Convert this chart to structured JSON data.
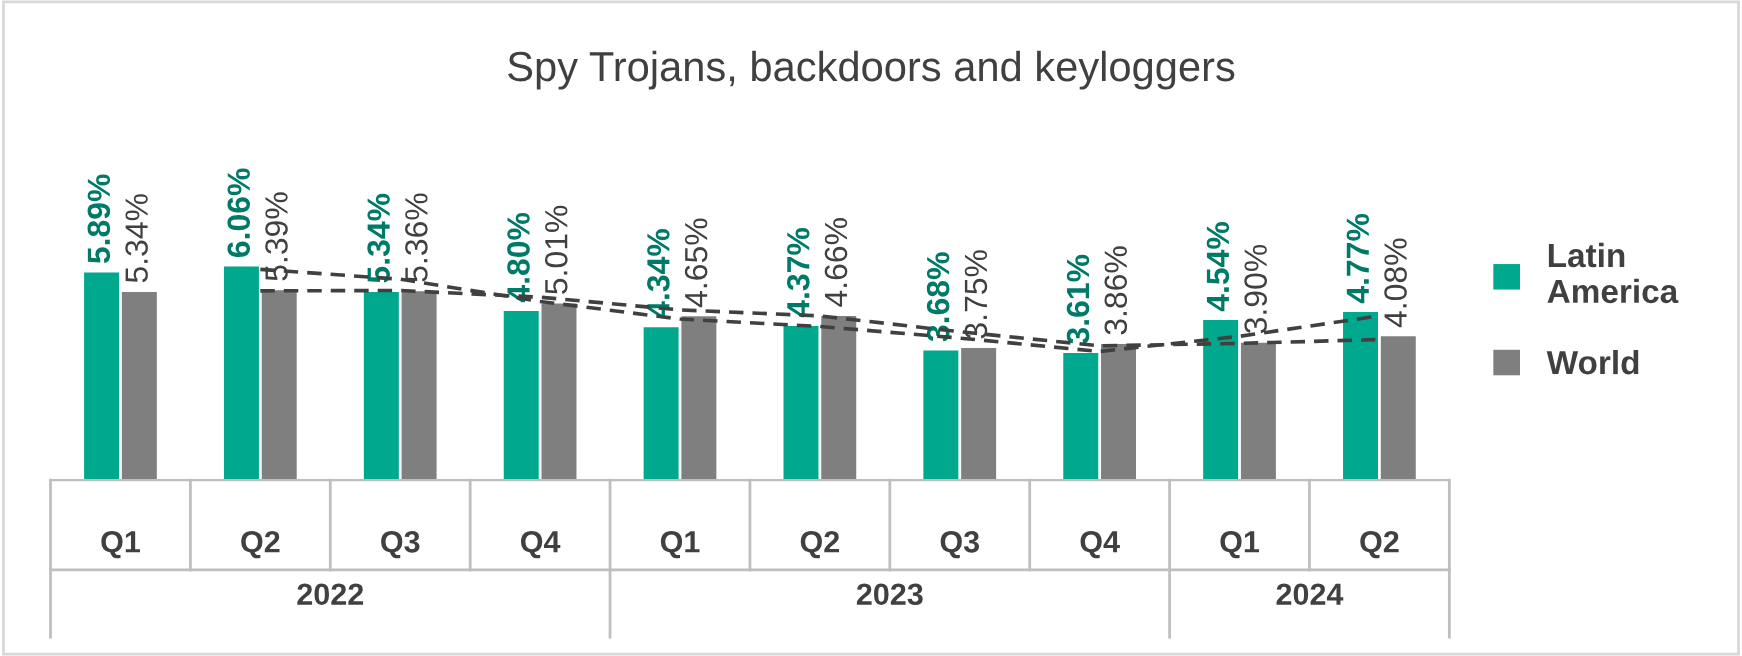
{
  "chart_data": {
    "type": "bar",
    "title": "Spy Trojans, backdoors and keyloggers",
    "categories": [
      "Q1",
      "Q2",
      "Q3",
      "Q4",
      "Q1",
      "Q2",
      "Q3",
      "Q4",
      "Q1",
      "Q2"
    ],
    "series": [
      {
        "name": "Latin America",
        "color": "#00a88e",
        "values": [
          5.89,
          6.06,
          5.34,
          4.8,
          4.34,
          4.37,
          3.68,
          3.61,
          4.54,
          4.77
        ],
        "value_labels": [
          "5.89%",
          "6.06%",
          "5.34%",
          "4.80%",
          "4.34%",
          "4.37%",
          "3.68%",
          "3.61%",
          "4.54%",
          "4.77%"
        ]
      },
      {
        "name": "World",
        "color": "#7f7f7f",
        "values": [
          5.34,
          5.39,
          5.36,
          5.01,
          4.65,
          4.66,
          3.75,
          3.86,
          3.9,
          4.08
        ],
        "value_labels": [
          "5.34%",
          "5.39%",
          "5.36%",
          "5.01%",
          "4.65%",
          "4.66%",
          "3.75%",
          "3.86%",
          "3.90%",
          "4.08%"
        ]
      },
      {
        "type": "line",
        "color": "#404040",
        "line_style": "dashed",
        "values": [
          null,
          5.98,
          5.7,
          5.07,
          4.57,
          4.36,
          4.03,
          3.65,
          4.08,
          4.66
        ]
      },
      {
        "type": "line",
        "color": "#404040",
        "line_style": "dashed",
        "values": [
          null,
          5.37,
          5.38,
          5.19,
          4.83,
          4.66,
          4.21,
          3.81,
          3.88,
          3.99
        ]
      }
    ],
    "annotations": [
      "2022",
      "2023",
      "2024"
    ],
    "legend": "right",
    "grid": false
  }
}
